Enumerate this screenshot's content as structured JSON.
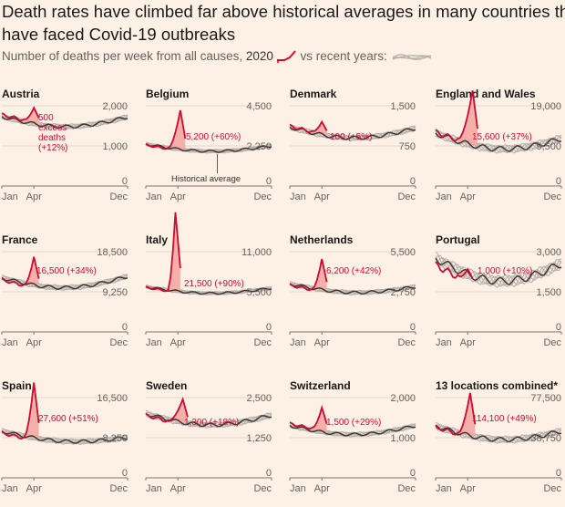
{
  "header": {
    "title_line1": "Death rates have climbed far above historical averages in many countries tha",
    "title_line2": "have faced Covid-19 outbreaks",
    "subtitle_prefix": "Number of deaths per week from all causes,",
    "subtitle_2020": "2020",
    "subtitle_suffix": "vs recent years:"
  },
  "colors": {
    "background": "#fdf1e6",
    "line_2020": "#cc0a32",
    "excess_fill": "#f4a9a2",
    "historical_lines": "#b7b0aa",
    "historical_average": "#3a3430",
    "grid": "#e3d7cc"
  },
  "chart_data": [
    {
      "type": "line",
      "name": "Austria",
      "ylim": [
        0,
        2000
      ],
      "yticks": [
        "2,000",
        "1,000",
        "0"
      ],
      "xticks": [
        "Jan",
        "Apr",
        "Dec"
      ],
      "peak_week": 14,
      "peak_value": 1900,
      "hist_start": 1730,
      "hist_trough": 1480,
      "hist_end": 1720,
      "start_2020": 1780,
      "annotation_lines": [
        "500",
        "excess",
        "deaths",
        "(+12%)"
      ]
    },
    {
      "type": "line",
      "name": "Belgium",
      "ylim": [
        0,
        4500
      ],
      "yticks": [
        "4,500",
        "2,250",
        "0"
      ],
      "xticks": [
        "Jan",
        "Apr",
        "Dec"
      ],
      "peak_week": 15,
      "peak_value": 4300,
      "hist_start": 2350,
      "hist_trough": 1950,
      "hist_end": 2250,
      "start_2020": 2300,
      "annotation_lines": [
        "5,200 (+60%)"
      ],
      "hist_label": "Historical average"
    },
    {
      "type": "line",
      "name": "Denmark",
      "ylim": [
        0,
        1500
      ],
      "yticks": [
        "1,500",
        "750",
        "0"
      ],
      "xticks": [
        "Jan",
        "Apr",
        "Dec"
      ],
      "peak_week": 14,
      "peak_value": 1180,
      "hist_start": 1100,
      "hist_trough": 900,
      "hist_end": 1080,
      "start_2020": 1120,
      "annotation_lines": [
        "100 (+5%)"
      ]
    },
    {
      "type": "line",
      "name": "England and Wales",
      "ylim": [
        0,
        19000
      ],
      "yticks": [
        "19,000",
        "9,500",
        "0"
      ],
      "xticks": [
        "Jan",
        "Apr",
        "Dec"
      ],
      "peak_week": 16,
      "peak_value": 22300,
      "hist_start": 12500,
      "hist_trough": 8800,
      "hist_end": 11200,
      "start_2020": 12800,
      "annotation_lines": [
        "15,600 (+37%)"
      ]
    },
    {
      "type": "line",
      "name": "France",
      "ylim": [
        0,
        18500
      ],
      "yticks": [
        "18,500",
        "9,250",
        "0"
      ],
      "xticks": [
        "Jan",
        "Apr",
        "Dec"
      ],
      "peak_week": 14,
      "peak_value": 17800,
      "hist_start": 12500,
      "hist_trough": 10200,
      "hist_end": 12800,
      "start_2020": 12000,
      "annotation_lines": [
        "16,500 (+34%)"
      ]
    },
    {
      "type": "line",
      "name": "Italy",
      "ylim": [
        0,
        11000
      ],
      "yticks": [
        "11,000",
        "5,500",
        "0"
      ],
      "xticks": [
        "Jan",
        "Apr",
        "Dec"
      ],
      "peak_week": 13,
      "peak_value": 16500,
      "hist_start": 6200,
      "hist_trough": 5300,
      "hist_end": 6000,
      "start_2020": 6100,
      "annotation_lines": [
        "21,500 (+90%)"
      ]
    },
    {
      "type": "line",
      "name": "Netherlands",
      "ylim": [
        0,
        5500
      ],
      "yticks": [
        "5,500",
        "2,750",
        "0"
      ],
      "xticks": [
        "Jan",
        "Apr",
        "Dec"
      ],
      "peak_week": 14,
      "peak_value": 5100,
      "hist_start": 3300,
      "hist_trough": 2700,
      "hist_end": 3100,
      "start_2020": 3200,
      "annotation_lines": [
        "6,200 (+42%)"
      ]
    },
    {
      "type": "line",
      "name": "Portugal",
      "ylim": [
        0,
        3000
      ],
      "yticks": [
        "3,000",
        "1,500",
        "0"
      ],
      "xticks": [
        "Jan",
        "Apr",
        "Dec"
      ],
      "peak_week": 14,
      "peak_value": 2600,
      "hist_start": 2750,
      "hist_trough": 1900,
      "hist_end": 2550,
      "start_2020": 2500,
      "annotation_lines": [
        "1,000 (+10%)"
      ]
    },
    {
      "type": "line",
      "name": "Spain",
      "ylim": [
        0,
        16500
      ],
      "yticks": [
        "16,500",
        "8,250",
        "0"
      ],
      "xticks": [
        "Jan",
        "Apr",
        "Dec"
      ],
      "peak_week": 14,
      "peak_value": 20000,
      "hist_start": 9600,
      "hist_trough": 7500,
      "hist_end": 8300,
      "start_2020": 9200,
      "annotation_lines": [
        "27,600 (+51%)"
      ]
    },
    {
      "type": "line",
      "name": "Sweden",
      "ylim": [
        0,
        2500
      ],
      "yticks": [
        "2,500",
        "1,250",
        "0"
      ],
      "xticks": [
        "Jan",
        "Apr",
        "Dec"
      ],
      "peak_week": 16,
      "peak_value": 2500,
      "hist_start": 2000,
      "hist_trough": 1650,
      "hist_end": 1950,
      "start_2020": 1950,
      "annotation_lines": [
        "1,300 (+18%)"
      ]
    },
    {
      "type": "line",
      "name": "Switzerland",
      "ylim": [
        0,
        2000
      ],
      "yticks": [
        "2,000",
        "1,000",
        "0"
      ],
      "xticks": [
        "Jan",
        "Apr",
        "Dec"
      ],
      "peak_week": 14,
      "peak_value": 1700,
      "hist_start": 1300,
      "hist_trough": 1080,
      "hist_end": 1300,
      "start_2020": 1350,
      "annotation_lines": [
        "1,500 (+29%)"
      ]
    },
    {
      "type": "line",
      "name": "13 locations combined*",
      "ylim": [
        0,
        77500
      ],
      "yticks": [
        "77,500",
        "38,750",
        "0"
      ],
      "xticks": [
        "Jan",
        "Apr",
        "Dec"
      ],
      "peak_week": 15,
      "peak_value": 83000,
      "hist_start": 50000,
      "hist_trough": 37000,
      "hist_end": 45000,
      "start_2020": 49000,
      "annotation_lines": [
        "114,100 (+49%)"
      ]
    }
  ]
}
